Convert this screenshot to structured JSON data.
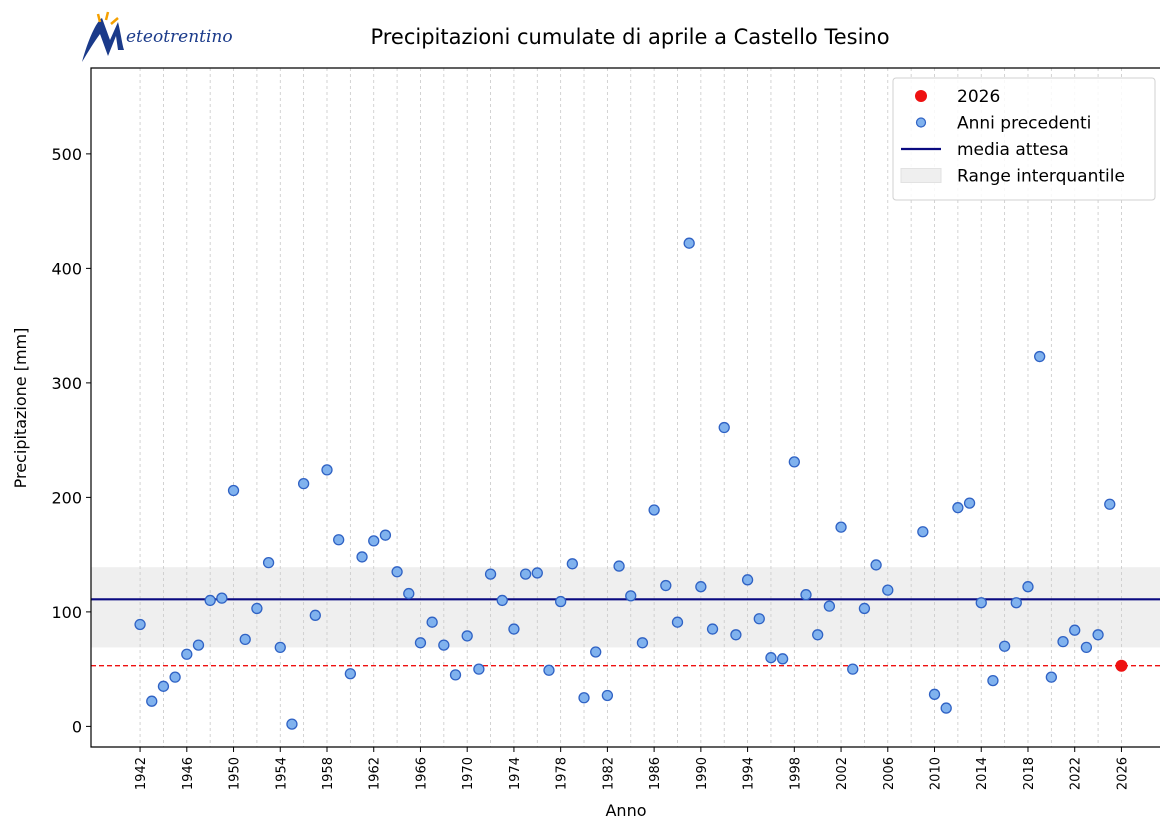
{
  "chart_data": {
    "type": "scatter",
    "logo": "eteotrentino",
    "title": "Precipitazioni cumulate di aprile a Castello Tesino",
    "x_label": "Anno",
    "y_label": "Precipitazione [mm]",
    "xlim": [
      1937.8,
      2029.3
    ],
    "ylim": [
      -18,
      575
    ],
    "xticks": [
      1942,
      1946,
      1950,
      1954,
      1958,
      1962,
      1966,
      1970,
      1974,
      1978,
      1982,
      1986,
      1990,
      1994,
      1998,
      2002,
      2006,
      2010,
      2014,
      2018,
      2022,
      2026
    ],
    "xgrid": [
      1942,
      1944,
      1946,
      1948,
      1950,
      1952,
      1954,
      1956,
      1958,
      1960,
      1962,
      1964,
      1966,
      1968,
      1970,
      1972,
      1974,
      1976,
      1978,
      1980,
      1982,
      1984,
      1986,
      1988,
      1990,
      1992,
      1994,
      1996,
      1998,
      2000,
      2002,
      2004,
      2006,
      2008,
      2010,
      2012,
      2014,
      2016,
      2018,
      2020,
      2022,
      2024,
      2026
    ],
    "yticks": [
      0,
      100,
      200,
      300,
      400,
      500
    ],
    "legend": "upper right",
    "series": [
      {
        "name": "2026",
        "color": "#ee1111",
        "x": [
          2026
        ],
        "values": [
          53
        ]
      },
      {
        "name": "Anni precedenti",
        "color": "#80b2ee",
        "edge_color": "#2f62c4",
        "x": [
          1942,
          1943,
          1944,
          1945,
          1946,
          1947,
          1948,
          1949,
          1950,
          1951,
          1952,
          1953,
          1954,
          1955,
          1956,
          1957,
          1958,
          1959,
          1960,
          1961,
          1962,
          1963,
          1964,
          1965,
          1966,
          1967,
          1968,
          1969,
          1970,
          1971,
          1972,
          1973,
          1974,
          1975,
          1976,
          1977,
          1978,
          1979,
          1980,
          1981,
          1982,
          1983,
          1984,
          1985,
          1986,
          1987,
          1988,
          1989,
          1990,
          1991,
          1992,
          1993,
          1994,
          1995,
          1996,
          1997,
          1998,
          1999,
          2000,
          2001,
          2002,
          2003,
          2004,
          2005,
          2006,
          2009,
          2010,
          2011,
          2012,
          2013,
          2014,
          2015,
          2016,
          2017,
          2018,
          2019,
          2020,
          2021,
          2022,
          2023,
          2024,
          2025
        ],
        "values": [
          89,
          22,
          35,
          43,
          63,
          71,
          110,
          112,
          206,
          76,
          103,
          143,
          69,
          2,
          212,
          97,
          224,
          163,
          46,
          148,
          162,
          167,
          135,
          116,
          73,
          91,
          71,
          45,
          79,
          50,
          133,
          110,
          85,
          133,
          134,
          49,
          109,
          142,
          25,
          65,
          27,
          140,
          114,
          73,
          189,
          123,
          91,
          422,
          122,
          85,
          261,
          80,
          128,
          94,
          60,
          59,
          231,
          115,
          80,
          105,
          174,
          50,
          103,
          141,
          119,
          170,
          28,
          16,
          191,
          195,
          108,
          40,
          70,
          108,
          122,
          323,
          43,
          74,
          84,
          69,
          80,
          194
        ]
      },
      {
        "name": "media attesa",
        "color": "#0a0a80",
        "value": 111
      },
      {
        "name": "Range interquantile",
        "color": "#efefef",
        "low": 69,
        "high": 139
      }
    ]
  }
}
